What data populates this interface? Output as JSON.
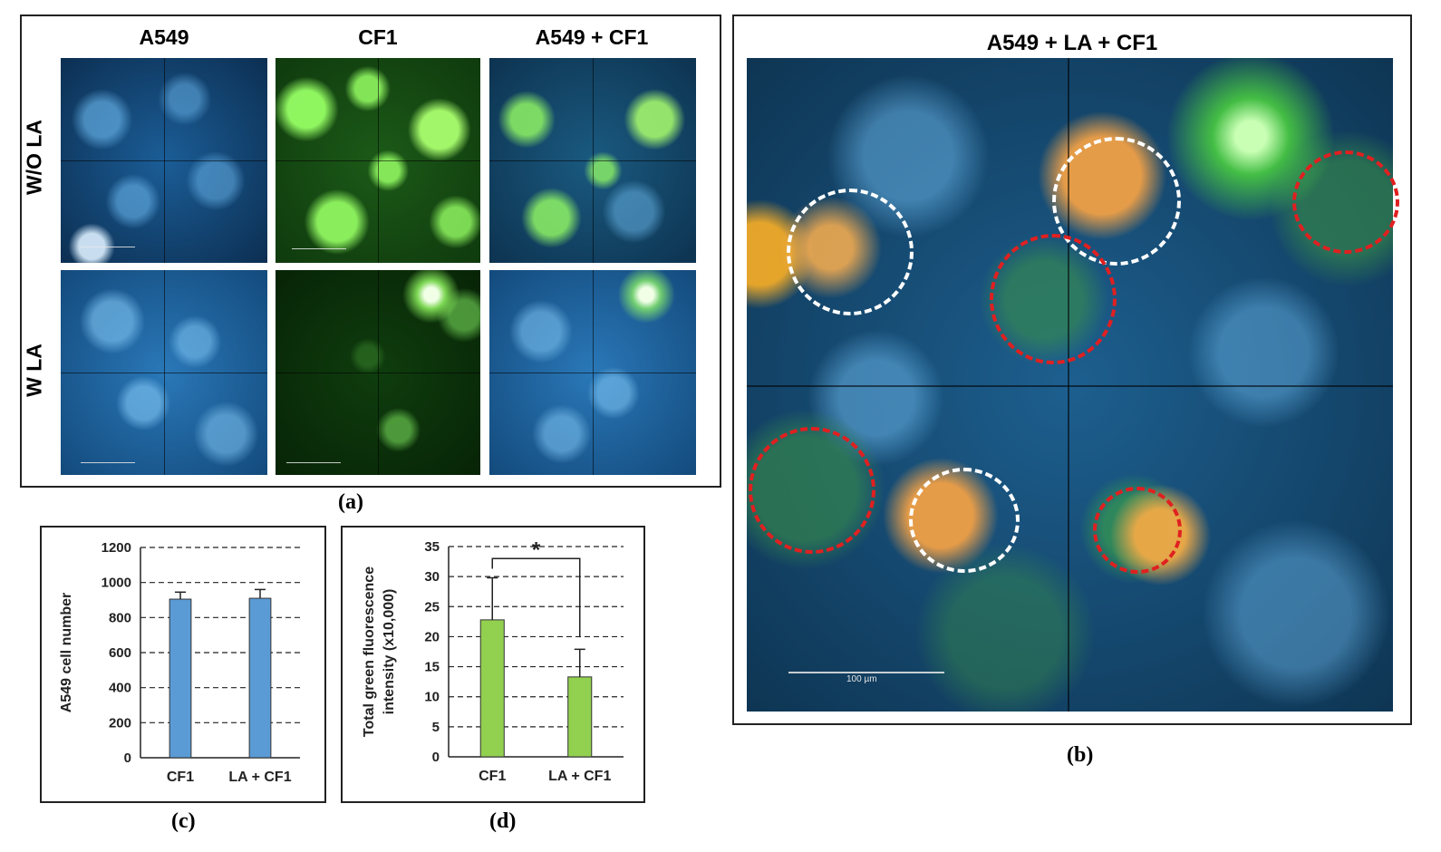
{
  "panel_a": {
    "columns": [
      "A549",
      "CF1",
      "A549 + CF1"
    ],
    "rows": [
      "W/O LA",
      "W LA"
    ],
    "caption": "(a)"
  },
  "panel_b": {
    "title": "A549 + LA + CF1",
    "scale_label": "100 µm",
    "caption": "(b)"
  },
  "panel_c": {
    "caption": "(c)"
  },
  "panel_d": {
    "caption": "(d)",
    "significance": "*"
  },
  "chart_data": [
    {
      "type": "bar",
      "categories": [
        "CF1",
        "LA + CF1"
      ],
      "values": [
        905,
        910
      ],
      "errors": [
        40,
        50
      ],
      "ylabel": "A549 cell number",
      "ylim": [
        0,
        1200
      ],
      "yticks": [
        0,
        200,
        400,
        600,
        800,
        1000,
        1200
      ],
      "bar_color": "#5b9bd5",
      "grid": "dashed-horizontal"
    },
    {
      "type": "bar",
      "categories": [
        "CF1",
        "LA + CF1"
      ],
      "values": [
        22.8,
        13.3
      ],
      "errors": [
        7.0,
        4.6
      ],
      "ylabel_lines": [
        "Total green fluorescence",
        "intensity (x10,000)"
      ],
      "ylim": [
        0,
        35
      ],
      "yticks": [
        0,
        5,
        10,
        15,
        20,
        25,
        30,
        35
      ],
      "bar_color": "#92d050",
      "grid": "dashed-horizontal",
      "significance": "*"
    }
  ],
  "colors": {
    "dapi_blue": "#1f6fae",
    "gfp_green": "#3fbf2a",
    "orange_stain": "#e89a2a",
    "circle_red": "#e02020"
  }
}
